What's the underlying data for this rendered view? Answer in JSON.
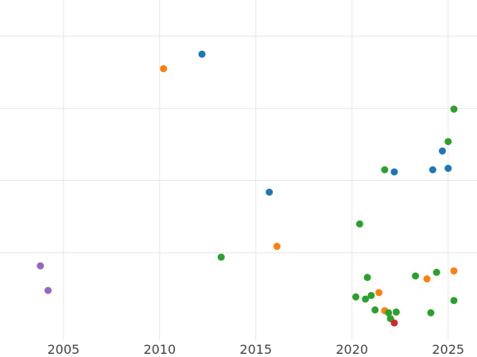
{
  "chart_data": {
    "type": "scatter",
    "title": "",
    "xlabel": "",
    "ylabel": "",
    "xlim": [
      2001.7,
      2026.5
    ],
    "ylim": [
      -0.2,
      4.5
    ],
    "grid": true,
    "x_ticks": [
      2005,
      2010,
      2015,
      2020,
      2025
    ],
    "x_tick_labels": [
      "2005",
      "2010",
      "2015",
      "2020",
      "2025"
    ],
    "y_gridlines": [
      4.0,
      3.0,
      2.0,
      1.0
    ],
    "series": [
      {
        "color": "#1f77b4",
        "points": [
          {
            "x": 2012.2,
            "y": 3.75
          },
          {
            "x": 2015.7,
            "y": 1.84
          },
          {
            "x": 2022.2,
            "y": 2.12
          },
          {
            "x": 2024.2,
            "y": 2.15
          },
          {
            "x": 2024.7,
            "y": 2.41
          },
          {
            "x": 2025.0,
            "y": 2.17
          }
        ]
      },
      {
        "color": "#ff7f0e",
        "points": [
          {
            "x": 2010.2,
            "y": 3.55
          },
          {
            "x": 2016.1,
            "y": 1.09
          },
          {
            "x": 2021.4,
            "y": 0.45
          },
          {
            "x": 2021.7,
            "y": 0.2
          },
          {
            "x": 2023.9,
            "y": 0.64
          },
          {
            "x": 2025.3,
            "y": 0.75
          }
        ]
      },
      {
        "color": "#2ca02c",
        "points": [
          {
            "x": 2013.2,
            "y": 0.94
          },
          {
            "x": 2020.2,
            "y": 0.39
          },
          {
            "x": 2020.4,
            "y": 1.4
          },
          {
            "x": 2020.7,
            "y": 0.36
          },
          {
            "x": 2020.8,
            "y": 0.66
          },
          {
            "x": 2021.0,
            "y": 0.41
          },
          {
            "x": 2021.2,
            "y": 0.21
          },
          {
            "x": 2021.7,
            "y": 2.15
          },
          {
            "x": 2021.9,
            "y": 0.17
          },
          {
            "x": 2022.0,
            "y": 0.09
          },
          {
            "x": 2022.3,
            "y": 0.18
          },
          {
            "x": 2023.3,
            "y": 0.68
          },
          {
            "x": 2024.1,
            "y": 0.17
          },
          {
            "x": 2024.4,
            "y": 0.73
          },
          {
            "x": 2025.0,
            "y": 2.54
          },
          {
            "x": 2025.3,
            "y": 2.99
          },
          {
            "x": 2025.3,
            "y": 0.34
          }
        ]
      },
      {
        "color": "#d62728",
        "points": [
          {
            "x": 2022.2,
            "y": 0.03
          }
        ]
      },
      {
        "color": "#9467bd",
        "points": [
          {
            "x": 2003.8,
            "y": 0.82
          },
          {
            "x": 2004.2,
            "y": 0.48
          }
        ]
      }
    ]
  }
}
